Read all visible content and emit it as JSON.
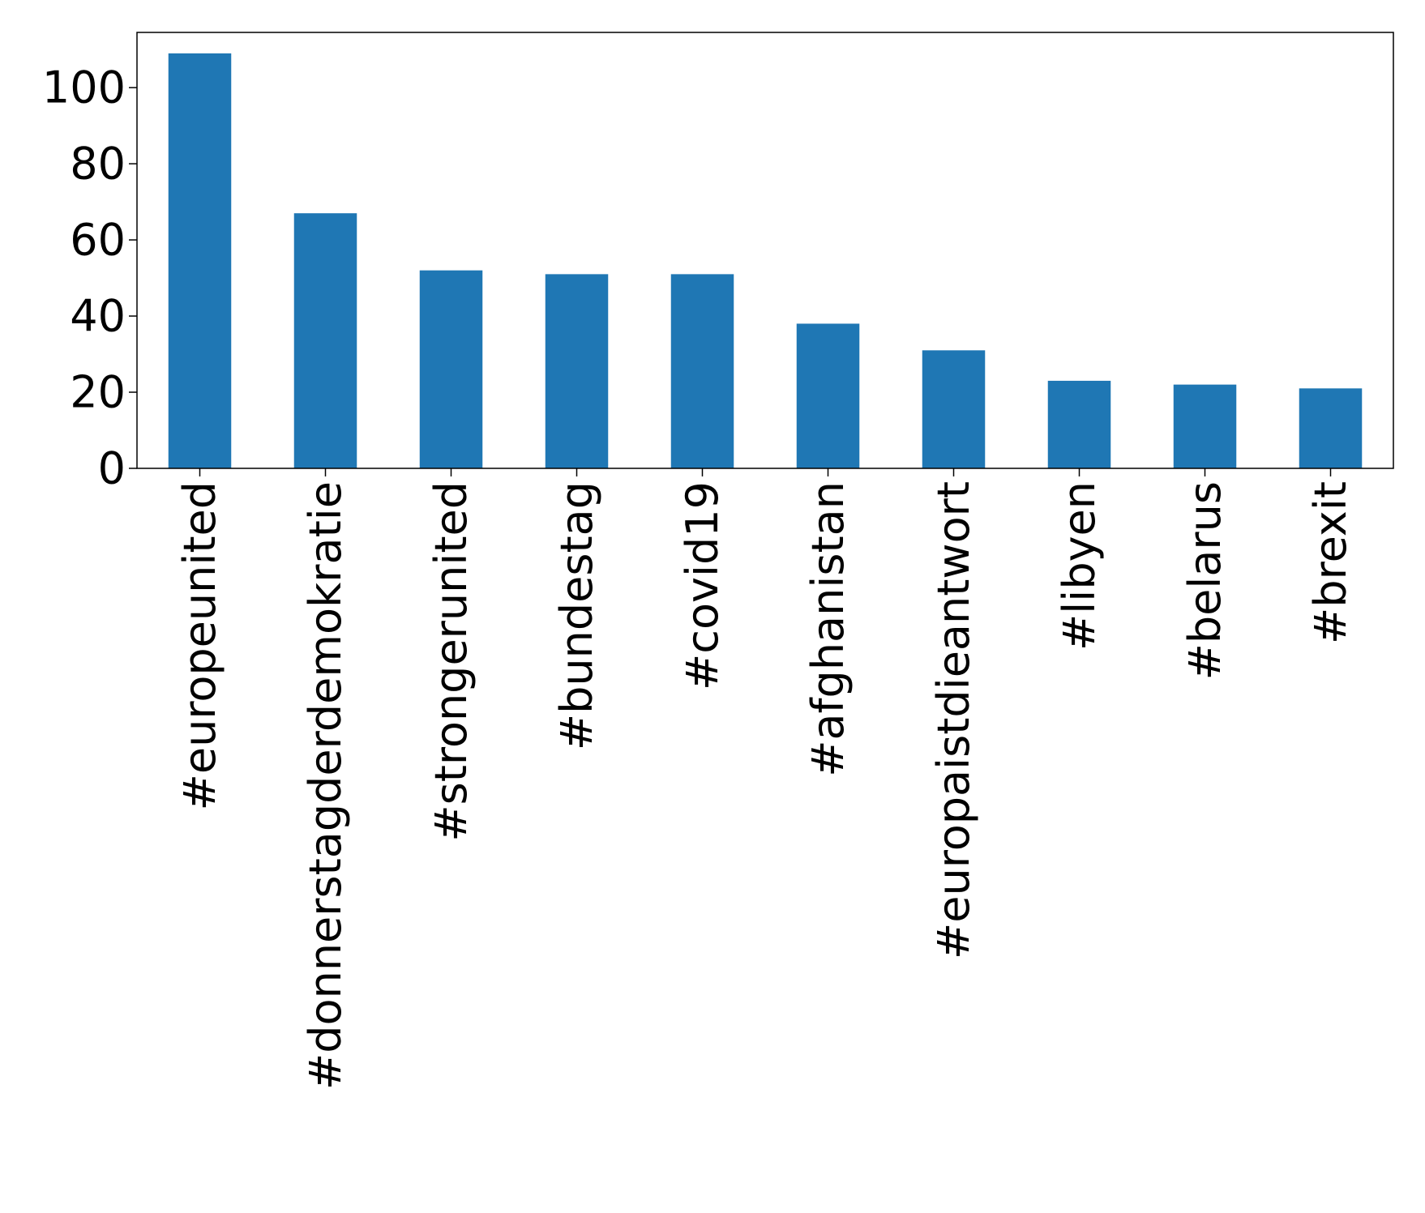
{
  "chart_data": {
    "type": "bar",
    "categories": [
      "#europeunited",
      "#donnerstagderdemokratie",
      "#strongerunited",
      "#bundestag",
      "#covid19",
      "#afghanistan",
      "#europaistdieantwort",
      "#libyen",
      "#belarus",
      "#brexit"
    ],
    "values": [
      109,
      67,
      52,
      51,
      51,
      38,
      31,
      23,
      22,
      21
    ],
    "color": "#1f77b4",
    "ylim": [
      0,
      114.5
    ],
    "yticks": [
      0,
      20,
      40,
      60,
      80,
      100
    ],
    "grid": false
  }
}
